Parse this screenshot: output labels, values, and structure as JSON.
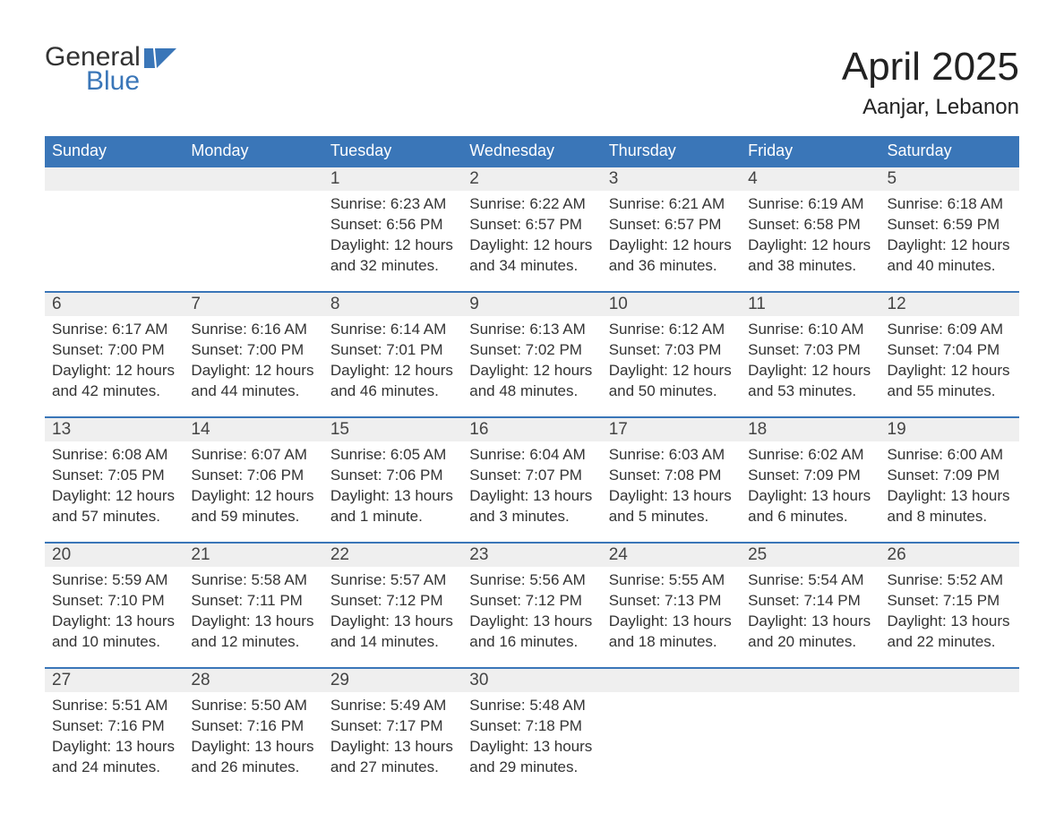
{
  "logo": {
    "line1": "General",
    "line2": "Blue",
    "icon_color": "#3a76b8",
    "text_color_1": "#333333",
    "text_color_2": "#3a76b8"
  },
  "title": "April 2025",
  "location": "Aanjar, Lebanon",
  "colors": {
    "header_bg": "#3a76b8",
    "header_text": "#ffffff",
    "daynum_bg": "#efefef",
    "row_border": "#3a76b8",
    "body_text": "#333333"
  },
  "day_headers": [
    "Sunday",
    "Monday",
    "Tuesday",
    "Wednesday",
    "Thursday",
    "Friday",
    "Saturday"
  ],
  "weeks": [
    [
      {
        "n": "",
        "sunrise": "",
        "sunset": "",
        "daylight": ""
      },
      {
        "n": "",
        "sunrise": "",
        "sunset": "",
        "daylight": ""
      },
      {
        "n": "1",
        "sunrise": "Sunrise: 6:23 AM",
        "sunset": "Sunset: 6:56 PM",
        "daylight": "Daylight: 12 hours and 32 minutes."
      },
      {
        "n": "2",
        "sunrise": "Sunrise: 6:22 AM",
        "sunset": "Sunset: 6:57 PM",
        "daylight": "Daylight: 12 hours and 34 minutes."
      },
      {
        "n": "3",
        "sunrise": "Sunrise: 6:21 AM",
        "sunset": "Sunset: 6:57 PM",
        "daylight": "Daylight: 12 hours and 36 minutes."
      },
      {
        "n": "4",
        "sunrise": "Sunrise: 6:19 AM",
        "sunset": "Sunset: 6:58 PM",
        "daylight": "Daylight: 12 hours and 38 minutes."
      },
      {
        "n": "5",
        "sunrise": "Sunrise: 6:18 AM",
        "sunset": "Sunset: 6:59 PM",
        "daylight": "Daylight: 12 hours and 40 minutes."
      }
    ],
    [
      {
        "n": "6",
        "sunrise": "Sunrise: 6:17 AM",
        "sunset": "Sunset: 7:00 PM",
        "daylight": "Daylight: 12 hours and 42 minutes."
      },
      {
        "n": "7",
        "sunrise": "Sunrise: 6:16 AM",
        "sunset": "Sunset: 7:00 PM",
        "daylight": "Daylight: 12 hours and 44 minutes."
      },
      {
        "n": "8",
        "sunrise": "Sunrise: 6:14 AM",
        "sunset": "Sunset: 7:01 PM",
        "daylight": "Daylight: 12 hours and 46 minutes."
      },
      {
        "n": "9",
        "sunrise": "Sunrise: 6:13 AM",
        "sunset": "Sunset: 7:02 PM",
        "daylight": "Daylight: 12 hours and 48 minutes."
      },
      {
        "n": "10",
        "sunrise": "Sunrise: 6:12 AM",
        "sunset": "Sunset: 7:03 PM",
        "daylight": "Daylight: 12 hours and 50 minutes."
      },
      {
        "n": "11",
        "sunrise": "Sunrise: 6:10 AM",
        "sunset": "Sunset: 7:03 PM",
        "daylight": "Daylight: 12 hours and 53 minutes."
      },
      {
        "n": "12",
        "sunrise": "Sunrise: 6:09 AM",
        "sunset": "Sunset: 7:04 PM",
        "daylight": "Daylight: 12 hours and 55 minutes."
      }
    ],
    [
      {
        "n": "13",
        "sunrise": "Sunrise: 6:08 AM",
        "sunset": "Sunset: 7:05 PM",
        "daylight": "Daylight: 12 hours and 57 minutes."
      },
      {
        "n": "14",
        "sunrise": "Sunrise: 6:07 AM",
        "sunset": "Sunset: 7:06 PM",
        "daylight": "Daylight: 12 hours and 59 minutes."
      },
      {
        "n": "15",
        "sunrise": "Sunrise: 6:05 AM",
        "sunset": "Sunset: 7:06 PM",
        "daylight": "Daylight: 13 hours and 1 minute."
      },
      {
        "n": "16",
        "sunrise": "Sunrise: 6:04 AM",
        "sunset": "Sunset: 7:07 PM",
        "daylight": "Daylight: 13 hours and 3 minutes."
      },
      {
        "n": "17",
        "sunrise": "Sunrise: 6:03 AM",
        "sunset": "Sunset: 7:08 PM",
        "daylight": "Daylight: 13 hours and 5 minutes."
      },
      {
        "n": "18",
        "sunrise": "Sunrise: 6:02 AM",
        "sunset": "Sunset: 7:09 PM",
        "daylight": "Daylight: 13 hours and 6 minutes."
      },
      {
        "n": "19",
        "sunrise": "Sunrise: 6:00 AM",
        "sunset": "Sunset: 7:09 PM",
        "daylight": "Daylight: 13 hours and 8 minutes."
      }
    ],
    [
      {
        "n": "20",
        "sunrise": "Sunrise: 5:59 AM",
        "sunset": "Sunset: 7:10 PM",
        "daylight": "Daylight: 13 hours and 10 minutes."
      },
      {
        "n": "21",
        "sunrise": "Sunrise: 5:58 AM",
        "sunset": "Sunset: 7:11 PM",
        "daylight": "Daylight: 13 hours and 12 minutes."
      },
      {
        "n": "22",
        "sunrise": "Sunrise: 5:57 AM",
        "sunset": "Sunset: 7:12 PM",
        "daylight": "Daylight: 13 hours and 14 minutes."
      },
      {
        "n": "23",
        "sunrise": "Sunrise: 5:56 AM",
        "sunset": "Sunset: 7:12 PM",
        "daylight": "Daylight: 13 hours and 16 minutes."
      },
      {
        "n": "24",
        "sunrise": "Sunrise: 5:55 AM",
        "sunset": "Sunset: 7:13 PM",
        "daylight": "Daylight: 13 hours and 18 minutes."
      },
      {
        "n": "25",
        "sunrise": "Sunrise: 5:54 AM",
        "sunset": "Sunset: 7:14 PM",
        "daylight": "Daylight: 13 hours and 20 minutes."
      },
      {
        "n": "26",
        "sunrise": "Sunrise: 5:52 AM",
        "sunset": "Sunset: 7:15 PM",
        "daylight": "Daylight: 13 hours and 22 minutes."
      }
    ],
    [
      {
        "n": "27",
        "sunrise": "Sunrise: 5:51 AM",
        "sunset": "Sunset: 7:16 PM",
        "daylight": "Daylight: 13 hours and 24 minutes."
      },
      {
        "n": "28",
        "sunrise": "Sunrise: 5:50 AM",
        "sunset": "Sunset: 7:16 PM",
        "daylight": "Daylight: 13 hours and 26 minutes."
      },
      {
        "n": "29",
        "sunrise": "Sunrise: 5:49 AM",
        "sunset": "Sunset: 7:17 PM",
        "daylight": "Daylight: 13 hours and 27 minutes."
      },
      {
        "n": "30",
        "sunrise": "Sunrise: 5:48 AM",
        "sunset": "Sunset: 7:18 PM",
        "daylight": "Daylight: 13 hours and 29 minutes."
      },
      {
        "n": "",
        "sunrise": "",
        "sunset": "",
        "daylight": ""
      },
      {
        "n": "",
        "sunrise": "",
        "sunset": "",
        "daylight": ""
      },
      {
        "n": "",
        "sunrise": "",
        "sunset": "",
        "daylight": ""
      }
    ]
  ]
}
